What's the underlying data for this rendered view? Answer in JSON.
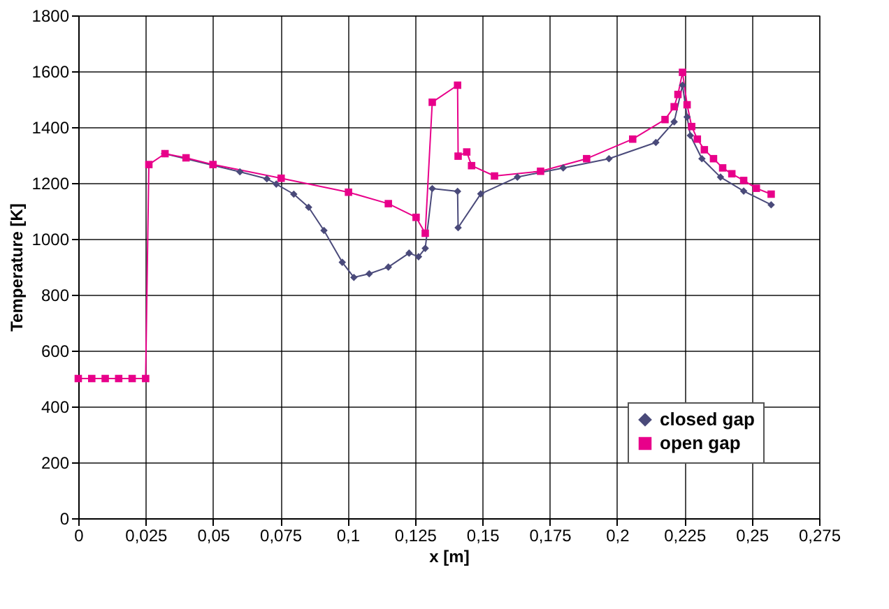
{
  "chart_data": {
    "type": "line",
    "xlabel": "x [m]",
    "ylabel": "Temperature [K]",
    "xlim": [
      0,
      0.275
    ],
    "ylim": [
      0,
      1800
    ],
    "xticks": [
      {
        "value": 0,
        "label": "0"
      },
      {
        "value": 0.025,
        "label": "0,025"
      },
      {
        "value": 0.05,
        "label": "0,05"
      },
      {
        "value": 0.075,
        "label": "0,075"
      },
      {
        "value": 0.1,
        "label": "0,1"
      },
      {
        "value": 0.125,
        "label": "0,125"
      },
      {
        "value": 0.15,
        "label": "0,15"
      },
      {
        "value": 0.175,
        "label": "0,175"
      },
      {
        "value": 0.2,
        "label": "0,2"
      },
      {
        "value": 0.225,
        "label": "0,225"
      },
      {
        "value": 0.25,
        "label": "0,25"
      },
      {
        "value": 0.275,
        "label": "0,275"
      }
    ],
    "yticks": [
      0,
      200,
      400,
      600,
      800,
      1000,
      1200,
      1400,
      1600,
      1800
    ],
    "grid": true,
    "legend": "bottom right",
    "series": [
      {
        "name": "closed gap",
        "color": "#4a4a7a",
        "marker": "diamond",
        "x": [
          0.032,
          0.06,
          0.07,
          0.0735,
          0.08,
          0.0855,
          0.0912,
          0.098,
          0.1023,
          0.108,
          0.1151,
          0.1228,
          0.1263,
          0.1288,
          0.1314,
          0.1408,
          0.141,
          0.1494,
          0.163,
          0.18,
          0.197,
          0.2144,
          0.2212,
          0.2243,
          0.226,
          0.2272,
          0.2315,
          0.2384,
          0.247,
          0.2572
        ],
        "values": [
          1305,
          1240,
          1215,
          1196,
          1160,
          1113,
          1030,
          916,
          862,
          875,
          899,
          949,
          936,
          966,
          1180,
          1170,
          1040,
          1161,
          1221,
          1254,
          1287,
          1345,
          1419,
          1550,
          1436,
          1370,
          1287,
          1221,
          1171,
          1122
        ]
      },
      {
        "name": "open gap",
        "color": "#e8008a",
        "marker": "square",
        "x": [
          0,
          0.005,
          0.01,
          0.015,
          0.02,
          0.025,
          0.0262,
          0.0322,
          0.04,
          0.05,
          0.0753,
          0.1003,
          0.1151,
          0.1254,
          0.1288,
          0.1314,
          0.1408,
          0.141,
          0.1442,
          0.146,
          0.1545,
          0.1716,
          0.1887,
          0.2058,
          0.2178,
          0.2212,
          0.2226,
          0.2243,
          0.226,
          0.2277,
          0.2298,
          0.2324,
          0.2358,
          0.2392,
          0.2426,
          0.247,
          0.2517,
          0.2572
        ],
        "values": [
          500,
          500,
          500,
          500,
          500,
          500,
          1266,
          1305,
          1290,
          1266,
          1217,
          1167,
          1126,
          1077,
          1020,
          1489,
          1550,
          1296,
          1311,
          1262,
          1225,
          1242,
          1287,
          1357,
          1427,
          1473,
          1517,
          1596,
          1480,
          1402,
          1357,
          1319,
          1287,
          1254,
          1233,
          1209,
          1181,
          1160
        ]
      }
    ]
  }
}
